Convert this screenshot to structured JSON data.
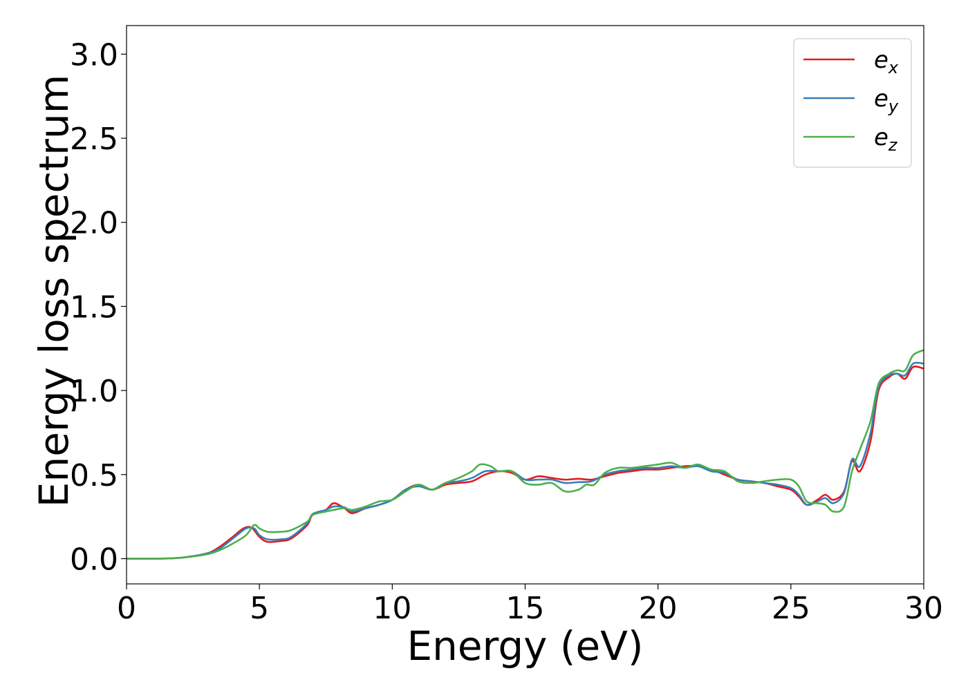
{
  "chart_data": {
    "type": "line",
    "title": "",
    "xlabel": "Energy (eV)",
    "ylabel": "Energy loss spectrum",
    "xlim": [
      0,
      30
    ],
    "ylim": [
      -0.15,
      3.17
    ],
    "xticks": [
      0,
      5,
      10,
      15,
      20,
      25,
      30
    ],
    "xtick_labels": [
      "0",
      "5",
      "10",
      "15",
      "20",
      "25",
      "30"
    ],
    "yticks": [
      0.0,
      0.5,
      1.0,
      1.5,
      2.0,
      2.5,
      3.0
    ],
    "ytick_labels": [
      "0.0",
      "0.5",
      "1.0",
      "1.5",
      "2.0",
      "2.5",
      "3.0"
    ],
    "grid": false,
    "legend_position": "top-right",
    "series": [
      {
        "base": "e",
        "sub": "x",
        "color": "#e41a1c",
        "points": [
          [
            0,
            0
          ],
          [
            1,
            0
          ],
          [
            2,
            0.005
          ],
          [
            3,
            0.03
          ],
          [
            3.5,
            0.07
          ],
          [
            4,
            0.13
          ],
          [
            4.4,
            0.18
          ],
          [
            4.7,
            0.185
          ],
          [
            5,
            0.13
          ],
          [
            5.3,
            0.1
          ],
          [
            5.8,
            0.105
          ],
          [
            6.2,
            0.12
          ],
          [
            6.8,
            0.2
          ],
          [
            7,
            0.26
          ],
          [
            7.5,
            0.29
          ],
          [
            7.8,
            0.33
          ],
          [
            8.2,
            0.3
          ],
          [
            8.5,
            0.27
          ],
          [
            9,
            0.3
          ],
          [
            9.5,
            0.32
          ],
          [
            10,
            0.35
          ],
          [
            10.5,
            0.41
          ],
          [
            11,
            0.44
          ],
          [
            11.5,
            0.41
          ],
          [
            12,
            0.44
          ],
          [
            12.5,
            0.45
          ],
          [
            13,
            0.46
          ],
          [
            13.5,
            0.5
          ],
          [
            14,
            0.52
          ],
          [
            14.5,
            0.51
          ],
          [
            15,
            0.47
          ],
          [
            15.5,
            0.49
          ],
          [
            16,
            0.48
          ],
          [
            16.5,
            0.47
          ],
          [
            17,
            0.475
          ],
          [
            17.5,
            0.47
          ],
          [
            18,
            0.49
          ],
          [
            18.5,
            0.51
          ],
          [
            19,
            0.52
          ],
          [
            19.5,
            0.53
          ],
          [
            20,
            0.53
          ],
          [
            20.5,
            0.54
          ],
          [
            21,
            0.55
          ],
          [
            21.5,
            0.55
          ],
          [
            22,
            0.53
          ],
          [
            22.5,
            0.5
          ],
          [
            23,
            0.47
          ],
          [
            23.5,
            0.46
          ],
          [
            24,
            0.45
          ],
          [
            24.5,
            0.43
          ],
          [
            25,
            0.41
          ],
          [
            25.3,
            0.37
          ],
          [
            25.6,
            0.32
          ],
          [
            26,
            0.35
          ],
          [
            26.3,
            0.38
          ],
          [
            26.6,
            0.35
          ],
          [
            27,
            0.4
          ],
          [
            27.3,
            0.58
          ],
          [
            27.6,
            0.52
          ],
          [
            28,
            0.7
          ],
          [
            28.3,
            1.0
          ],
          [
            28.7,
            1.08
          ],
          [
            29,
            1.1
          ],
          [
            29.3,
            1.07
          ],
          [
            29.6,
            1.14
          ],
          [
            30,
            1.13
          ]
        ]
      },
      {
        "base": "e",
        "sub": "y",
        "color": "#377eb8",
        "points": [
          [
            0,
            0
          ],
          [
            1,
            0
          ],
          [
            2,
            0.005
          ],
          [
            3,
            0.03
          ],
          [
            3.5,
            0.06
          ],
          [
            4,
            0.12
          ],
          [
            4.5,
            0.18
          ],
          [
            4.8,
            0.18
          ],
          [
            5,
            0.14
          ],
          [
            5.3,
            0.115
          ],
          [
            5.8,
            0.115
          ],
          [
            6.2,
            0.13
          ],
          [
            6.8,
            0.21
          ],
          [
            7,
            0.265
          ],
          [
            7.5,
            0.29
          ],
          [
            7.8,
            0.31
          ],
          [
            8.2,
            0.305
          ],
          [
            8.5,
            0.28
          ],
          [
            9,
            0.3
          ],
          [
            9.5,
            0.32
          ],
          [
            10,
            0.35
          ],
          [
            10.5,
            0.41
          ],
          [
            11,
            0.43
          ],
          [
            11.5,
            0.41
          ],
          [
            12,
            0.45
          ],
          [
            12.5,
            0.46
          ],
          [
            13,
            0.48
          ],
          [
            13.5,
            0.52
          ],
          [
            14,
            0.52
          ],
          [
            14.5,
            0.52
          ],
          [
            15,
            0.47
          ],
          [
            15.5,
            0.47
          ],
          [
            16,
            0.47
          ],
          [
            16.5,
            0.45
          ],
          [
            17,
            0.455
          ],
          [
            17.5,
            0.46
          ],
          [
            18,
            0.5
          ],
          [
            18.5,
            0.52
          ],
          [
            19,
            0.53
          ],
          [
            19.5,
            0.54
          ],
          [
            20,
            0.54
          ],
          [
            20.5,
            0.55
          ],
          [
            21,
            0.54
          ],
          [
            21.5,
            0.55
          ],
          [
            22,
            0.52
          ],
          [
            22.5,
            0.51
          ],
          [
            23,
            0.47
          ],
          [
            23.5,
            0.46
          ],
          [
            24,
            0.45
          ],
          [
            24.5,
            0.44
          ],
          [
            25,
            0.42
          ],
          [
            25.3,
            0.38
          ],
          [
            25.6,
            0.32
          ],
          [
            26,
            0.34
          ],
          [
            26.3,
            0.36
          ],
          [
            26.6,
            0.33
          ],
          [
            27,
            0.39
          ],
          [
            27.3,
            0.59
          ],
          [
            27.6,
            0.55
          ],
          [
            28,
            0.75
          ],
          [
            28.3,
            1.02
          ],
          [
            28.7,
            1.09
          ],
          [
            29,
            1.1
          ],
          [
            29.3,
            1.09
          ],
          [
            29.6,
            1.16
          ],
          [
            30,
            1.16
          ]
        ]
      },
      {
        "base": "e",
        "sub": "z",
        "color": "#4daf4a",
        "points": [
          [
            0,
            0
          ],
          [
            1,
            0
          ],
          [
            2,
            0.005
          ],
          [
            3,
            0.025
          ],
          [
            3.5,
            0.05
          ],
          [
            4,
            0.09
          ],
          [
            4.5,
            0.14
          ],
          [
            4.8,
            0.2
          ],
          [
            5,
            0.18
          ],
          [
            5.3,
            0.16
          ],
          [
            5.8,
            0.16
          ],
          [
            6.2,
            0.17
          ],
          [
            6.8,
            0.22
          ],
          [
            7,
            0.26
          ],
          [
            7.5,
            0.28
          ],
          [
            7.8,
            0.29
          ],
          [
            8.2,
            0.3
          ],
          [
            8.5,
            0.29
          ],
          [
            9,
            0.31
          ],
          [
            9.5,
            0.34
          ],
          [
            10,
            0.35
          ],
          [
            10.5,
            0.4
          ],
          [
            11,
            0.44
          ],
          [
            11.5,
            0.41
          ],
          [
            12,
            0.45
          ],
          [
            12.5,
            0.48
          ],
          [
            13,
            0.52
          ],
          [
            13.3,
            0.56
          ],
          [
            13.7,
            0.55
          ],
          [
            14,
            0.52
          ],
          [
            14.5,
            0.52
          ],
          [
            15,
            0.45
          ],
          [
            15.5,
            0.44
          ],
          [
            16,
            0.45
          ],
          [
            16.5,
            0.4
          ],
          [
            17,
            0.41
          ],
          [
            17.3,
            0.44
          ],
          [
            17.6,
            0.44
          ],
          [
            18,
            0.51
          ],
          [
            18.5,
            0.54
          ],
          [
            19,
            0.54
          ],
          [
            19.5,
            0.55
          ],
          [
            20,
            0.56
          ],
          [
            20.5,
            0.57
          ],
          [
            21,
            0.54
          ],
          [
            21.5,
            0.56
          ],
          [
            22,
            0.53
          ],
          [
            22.5,
            0.52
          ],
          [
            23,
            0.46
          ],
          [
            23.5,
            0.45
          ],
          [
            24,
            0.46
          ],
          [
            24.5,
            0.47
          ],
          [
            25,
            0.47
          ],
          [
            25.3,
            0.43
          ],
          [
            25.6,
            0.34
          ],
          [
            26,
            0.33
          ],
          [
            26.3,
            0.32
          ],
          [
            26.6,
            0.28
          ],
          [
            27,
            0.31
          ],
          [
            27.3,
            0.52
          ],
          [
            27.6,
            0.65
          ],
          [
            28,
            0.82
          ],
          [
            28.3,
            1.04
          ],
          [
            28.7,
            1.1
          ],
          [
            29,
            1.12
          ],
          [
            29.3,
            1.12
          ],
          [
            29.6,
            1.21
          ],
          [
            30,
            1.24
          ]
        ]
      }
    ]
  }
}
